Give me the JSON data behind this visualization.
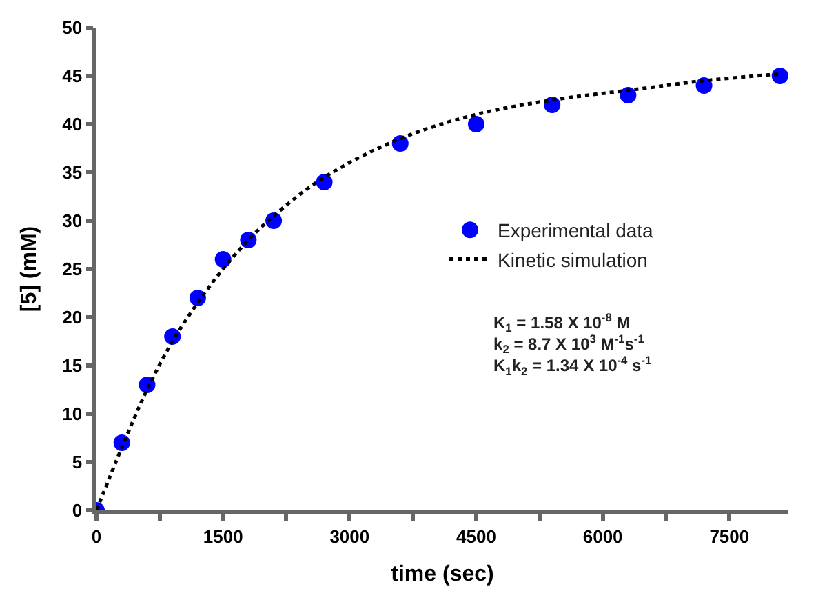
{
  "chart_data": {
    "type": "scatter",
    "xlabel": "time (sec)",
    "ylabel": "[5] (mM)",
    "xlim": [
      0,
      8200
    ],
    "xticks": [
      0,
      {
        "value": 750,
        "label": null
      },
      1500,
      {
        "value": 2250,
        "label": null
      },
      3000,
      {
        "value": 3750,
        "label": null
      },
      4500,
      {
        "value": 5250,
        "label": null
      },
      6000,
      {
        "value": 6750,
        "label": null
      },
      7500
    ],
    "ylim": [
      0,
      50
    ],
    "yticks": [
      0,
      5,
      10,
      15,
      20,
      25,
      30,
      35,
      40,
      45,
      50
    ],
    "grid": false,
    "legend": "right",
    "series": [
      {
        "name": "Experimental data",
        "marker": "circle",
        "color": "#0000ff",
        "x": [
          0,
          300,
          600,
          900,
          1200,
          1500,
          1800,
          2100,
          2700,
          3600,
          4500,
          5400,
          6300,
          7200,
          8100
        ],
        "values": [
          0,
          7,
          13,
          18,
          22,
          26,
          28,
          30,
          34,
          38,
          40,
          42,
          43,
          44,
          45
        ]
      },
      {
        "name": "Kinetic simulation",
        "type": "line",
        "line_style": "dotted",
        "color": "#000000",
        "x": [
          0,
          300,
          600,
          900,
          1200,
          1500,
          1800,
          2100,
          2700,
          3600,
          4500,
          5400,
          6300,
          7200,
          8100
        ],
        "values": [
          0,
          6.5,
          12.5,
          17.5,
          21.5,
          25,
          28,
          30.5,
          34.5,
          38.5,
          41,
          42.5,
          43.5,
          44.5,
          45.2
        ]
      }
    ],
    "annotations": [
      "K$_{1}$ = 1.58 X 10$^{-8}$ M",
      "k$_{2}$ = 8.7 X 10$^{3}$ M$^{-1}$s$^{-1}$",
      "K$_{1}$k$_{2}$ = 1.34 X 10$^{-4}$ s$^{-1}$"
    ]
  }
}
